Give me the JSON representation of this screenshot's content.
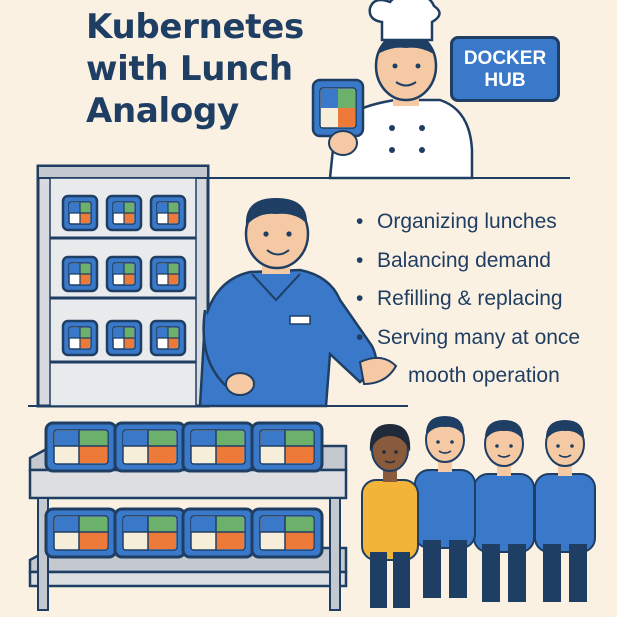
{
  "title_lines": [
    "Kubernetes",
    "with Lunch",
    "Analogy"
  ],
  "badge_lines": [
    "DOCKER",
    "HUB"
  ],
  "bullets": [
    {
      "text": "Organizing lunches",
      "bullet": true
    },
    {
      "text": "Balancing demand",
      "bullet": true
    },
    {
      "text": "Refilling & replacing",
      "bullet": true
    },
    {
      "text": "Serving many at once",
      "bullet": true
    },
    {
      "text": "mooth operation",
      "bullet": false
    }
  ],
  "colors": {
    "background": "#fbf1e3",
    "navy": "#1f3e63",
    "blue": "#3a79c9",
    "box_green": "#6bb06b",
    "box_orange": "#ee7a3a",
    "shirt_yellow": "#f2b53a",
    "skin": "#f4c9a3"
  },
  "icons": {
    "chef": "chef-icon",
    "manager": "manager-icon",
    "customers": "customer-icon",
    "lunchbox": "lunchbox-icon"
  }
}
